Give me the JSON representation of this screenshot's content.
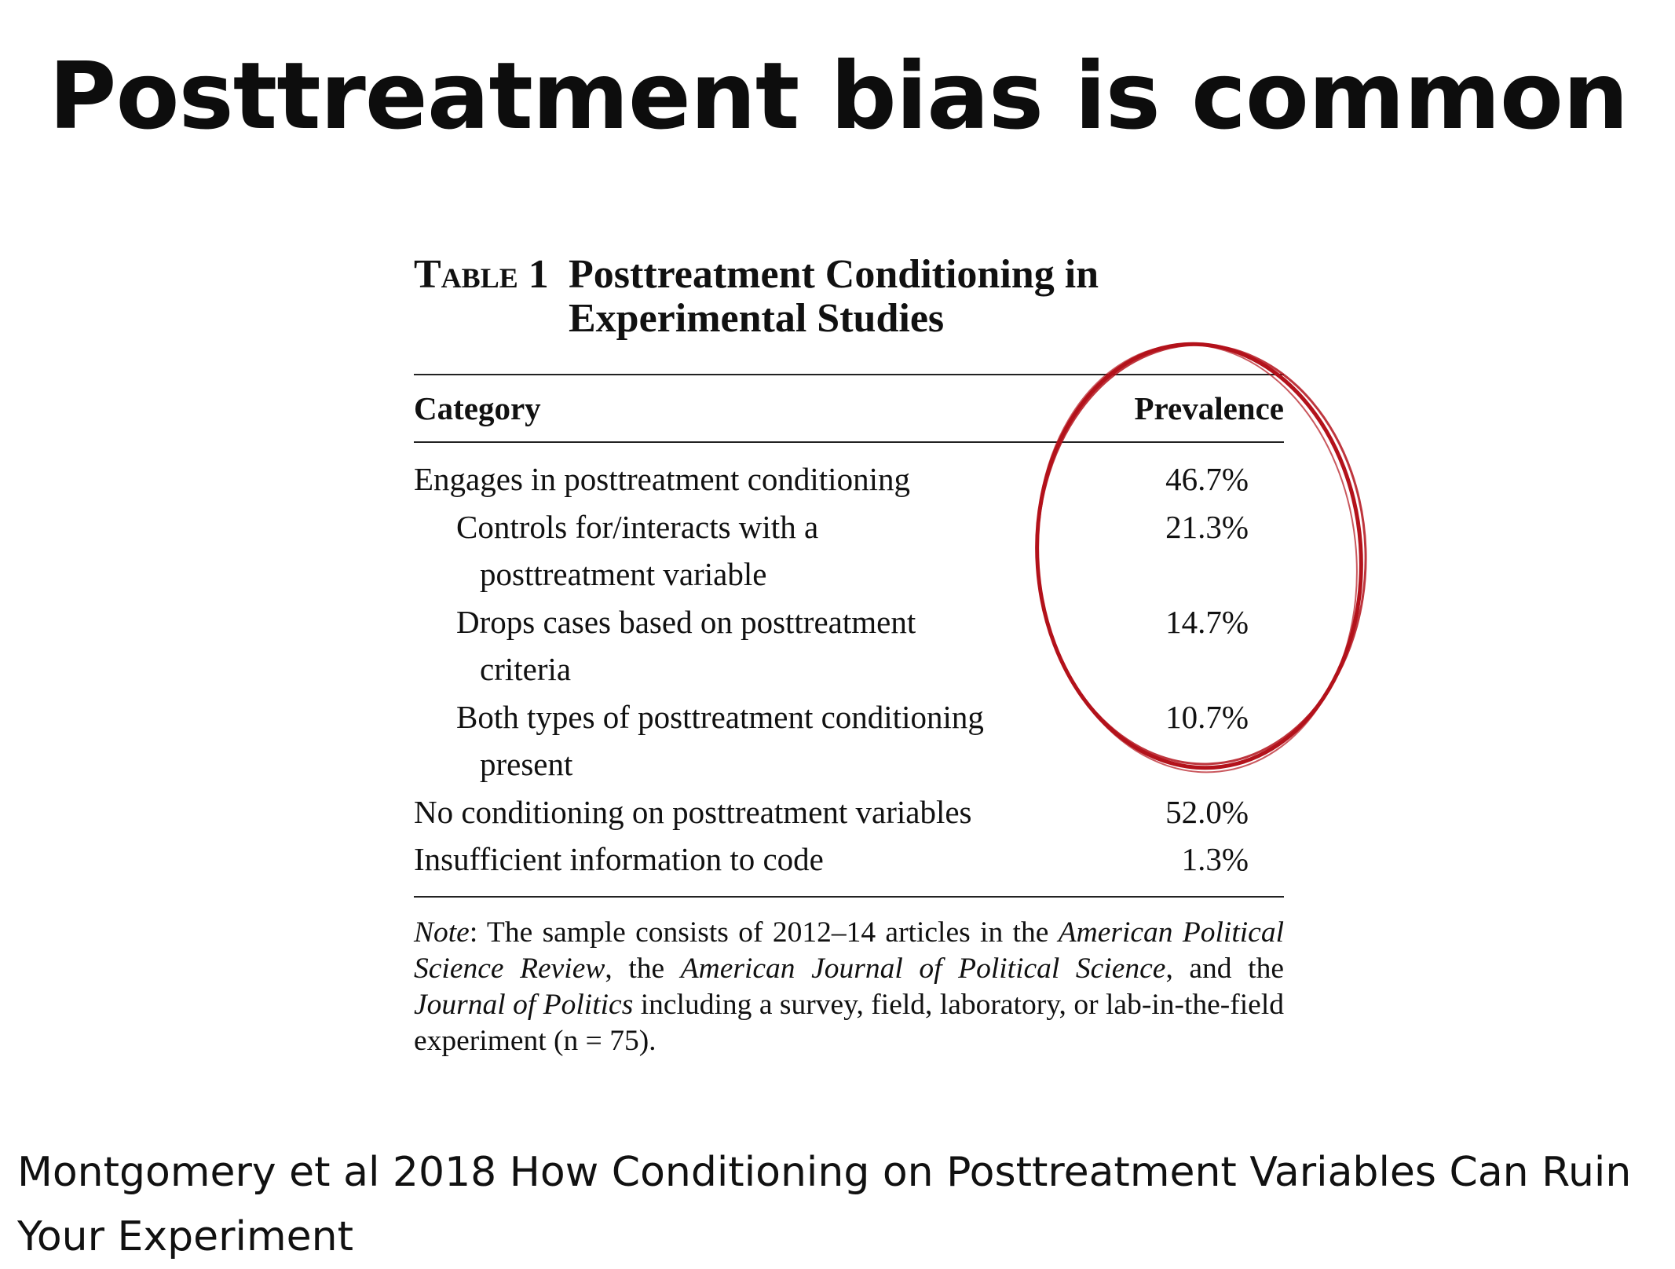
{
  "slide": {
    "title": "Posttreatment bias is common",
    "citation": "Montgomery et al 2018 How Conditioning on Posttreatment Variables Can Ruin Your Experiment"
  },
  "table": {
    "label": "Table 1",
    "title": "Posttreatment Conditioning in Experimental Studies",
    "headers": {
      "category": "Category",
      "prevalence": "Prevalence"
    },
    "rows": [
      {
        "category": "Engages in posttreatment conditioning",
        "continuation": "",
        "prevalence": "46.7%"
      },
      {
        "category": "Controls for/interacts with a",
        "continuation": "posttreatment variable",
        "prevalence": "21.3%"
      },
      {
        "category": "Drops cases based on posttreatment",
        "continuation": "criteria",
        "prevalence": "14.7%"
      },
      {
        "category": "Both types of posttreatment conditioning",
        "continuation": "present",
        "prevalence": "10.7%"
      },
      {
        "category": "No conditioning on posttreatment variables",
        "continuation": "",
        "prevalence": "52.0%"
      },
      {
        "category": "Insufficient information to code",
        "continuation": "",
        "prevalence": "1.3%"
      }
    ],
    "note": {
      "label": "Note",
      "text_1": ": The sample consists of 2012–14 articles in the ",
      "journal_1": "American Political Science Review",
      "text_2": ", the ",
      "journal_2": "American Journal of Political Science",
      "text_3": ", and the ",
      "journal_3": "Journal of Politics",
      "text_4": " including a survey, field, laboratory, or lab-in-the-field experiment (n = 75)."
    }
  },
  "annotation": {
    "color": "#b3121b"
  }
}
